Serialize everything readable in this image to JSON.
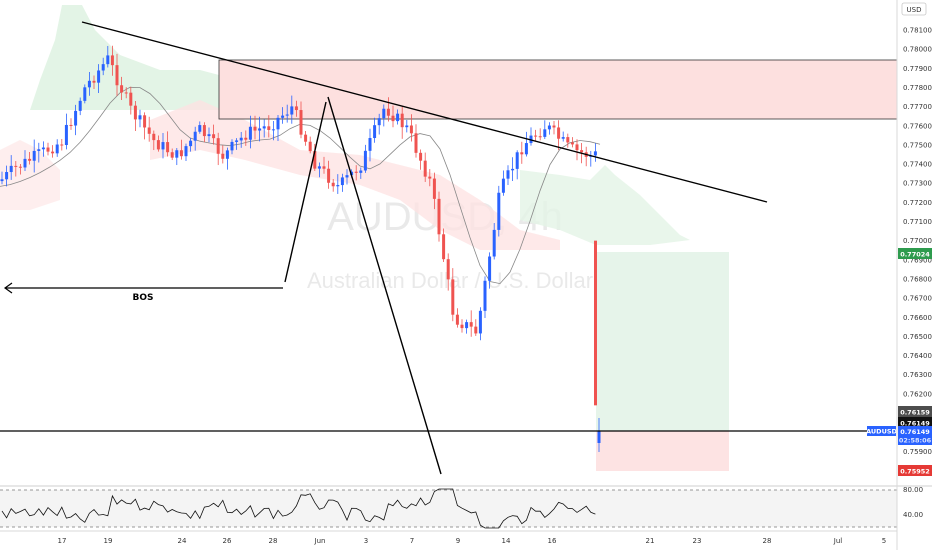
{
  "currency": "USD",
  "watermark": {
    "symbol": "AUDUSD, 4h",
    "description": "Australian Dollar / U.S. Dollar"
  },
  "annotation": {
    "bos_label": "BOS"
  },
  "price_tags": {
    "target": "0.77024",
    "level_a": "0.76159",
    "level_b": "0.76149",
    "stop": "0.75952",
    "symbol_label": "AUDUSD",
    "current": "0.76149",
    "countdown": "02:58:06"
  },
  "colors": {
    "up": "#2962ff",
    "down": "#ef5350",
    "target_zone": "#e6f4ea",
    "stop_zone": "#fde3e3",
    "supply_zone": "#fde0df",
    "cloud_green": "#e3f4e6",
    "cloud_red": "#fde2e2"
  },
  "chart_data": {
    "type": "line",
    "title": "AUDUSD, 4h",
    "subtitle": "Australian Dollar / U.S. Dollar",
    "y_unit": "USD",
    "y_ticks": [
      "0.78100",
      "0.78000",
      "0.77900",
      "0.77800",
      "0.77700",
      "0.77600",
      "0.77500",
      "0.77400",
      "0.77300",
      "0.77200",
      "0.77100",
      "0.77000",
      "0.76900",
      "0.76800",
      "0.76700",
      "0.76600",
      "0.76500",
      "0.76400",
      "0.76300",
      "0.76200",
      "0.76100",
      "0.76000",
      "0.75900"
    ],
    "x_ticks": [
      "17",
      "19",
      "24",
      "26",
      "28",
      "Jun",
      "3",
      "7",
      "9",
      "14",
      "16",
      "21",
      "23",
      "28",
      "Jul",
      "5"
    ],
    "ylim": [
      0.759,
      0.782
    ],
    "series": [
      {
        "points": [
          [
            "May 14",
            0.7728
          ],
          [
            "May 15",
            0.7738
          ],
          [
            "May 16",
            0.7745
          ],
          [
            "May 17",
            0.7752
          ],
          [
            "May 18",
            0.778
          ],
          [
            "May 19",
            0.7795
          ],
          [
            "May 20",
            0.7768
          ],
          [
            "May 21",
            0.7752
          ],
          [
            "May 22",
            0.7744
          ],
          [
            "May 23",
            0.7758
          ],
          [
            "May 24",
            0.7744
          ],
          [
            "May 25",
            0.7756
          ],
          [
            "May 26",
            0.776
          ],
          [
            "May 27",
            0.777
          ],
          [
            "May 28",
            0.774
          ],
          [
            "May 29",
            0.7728
          ],
          [
            "May 30",
            0.774
          ],
          [
            "May 31",
            0.777
          ],
          [
            "Jun 1",
            0.7758
          ],
          [
            "Jun 2",
            0.773
          ],
          [
            "Jun 3",
            0.766
          ],
          [
            "Jun 4",
            0.7652
          ],
          [
            "Jun 5",
            0.7725
          ],
          [
            "Jun 6",
            0.775
          ],
          [
            "Jun 7",
            0.776
          ],
          [
            "Jun 8",
            0.7748
          ],
          [
            "Jun 9",
            0.7744
          ],
          [
            "Jun 10",
            0.775
          ],
          [
            "Jun 11",
            0.7754
          ],
          [
            "Jun 12",
            0.77
          ],
          [
            "Jun 13",
            0.771
          ],
          [
            "Jun 14",
            0.77
          ],
          [
            "Jun 15",
            0.7692
          ],
          [
            "Jun 16",
            0.77
          ],
          [
            "Jun 17",
            0.7614
          ]
        ]
      }
    ],
    "zones": {
      "supply": [
        0.7769,
        0.7797
      ],
      "target": [
        0.76149,
        0.77024
      ],
      "stop": [
        0.75952,
        0.76149
      ]
    },
    "rsi": {
      "levels": [
        "80.00",
        "40.00"
      ]
    },
    "grid": false
  }
}
